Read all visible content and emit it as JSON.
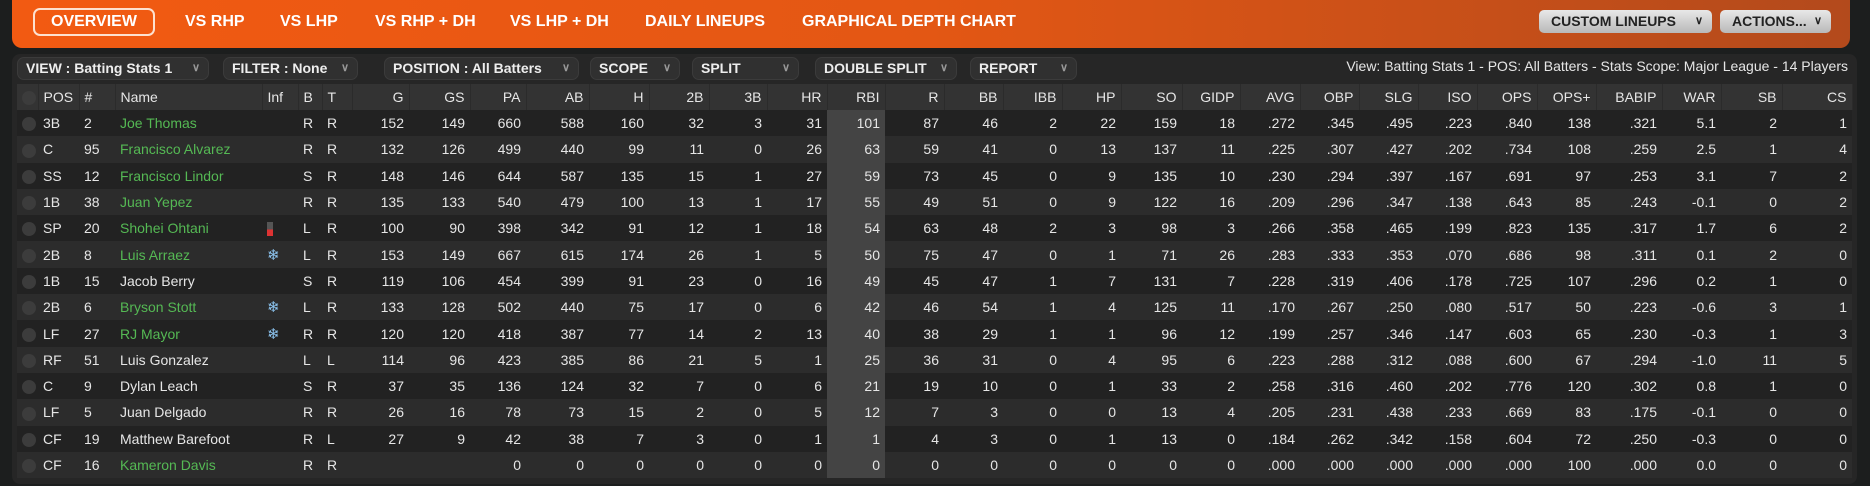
{
  "nav": {
    "tabs": [
      "OVERVIEW",
      "VS RHP",
      "VS LHP",
      "VS RHP + DH",
      "VS LHP + DH",
      "DAILY LINEUPS",
      "GRAPHICAL DEPTH CHART"
    ],
    "active": "OVERVIEW",
    "custom_lineups": "CUSTOM LINEUPS",
    "actions": "ACTIONS..."
  },
  "colors": {
    "accent": "#f25a12",
    "highlight_name": "#55b954",
    "rbi_highlight": "#444444"
  },
  "toolbar": {
    "view": "VIEW : Batting Stats 1",
    "filter": "FILTER : None",
    "position": "POSITION : All Batters",
    "scope": "SCOPE",
    "split": "SPLIT",
    "double_split": "DOUBLE SPLIT",
    "report": "REPORT",
    "info": "View: Batting Stats 1 - POS: All Batters - Stats Scope: Major League - 14 Players"
  },
  "table": {
    "columns": [
      "POS",
      "#",
      "Name",
      "Inf",
      "B",
      "T",
      "G",
      "GS",
      "PA",
      "AB",
      "H",
      "2B",
      "3B",
      "HR",
      "RBI",
      "R",
      "BB",
      "IBB",
      "HP",
      "SO",
      "GIDP",
      "AVG",
      "OBP",
      "SLG",
      "ISO",
      "OPS",
      "OPS+",
      "BABIP",
      "WAR",
      "SB",
      "CS"
    ],
    "sorted_column": "RBI",
    "rows": [
      {
        "pos": "3B",
        "num": "2",
        "name": "Joe Thomas",
        "green": true,
        "inf": "",
        "b": "R",
        "t": "R",
        "stats": [
          "152",
          "149",
          "660",
          "588",
          "160",
          "32",
          "3",
          "31",
          "101",
          "87",
          "46",
          "2",
          "22",
          "159",
          "18",
          ".272",
          ".345",
          ".495",
          ".223",
          ".840",
          "138",
          ".321",
          "5.1",
          "2",
          "1"
        ]
      },
      {
        "pos": "C",
        "num": "95",
        "name": "Francisco Alvarez",
        "green": true,
        "inf": "",
        "b": "R",
        "t": "R",
        "stats": [
          "132",
          "126",
          "499",
          "440",
          "99",
          "11",
          "0",
          "26",
          "63",
          "59",
          "41",
          "0",
          "13",
          "137",
          "11",
          ".225",
          ".307",
          ".427",
          ".202",
          ".734",
          "108",
          ".259",
          "2.5",
          "1",
          "4"
        ]
      },
      {
        "pos": "SS",
        "num": "12",
        "name": "Francisco Lindor",
        "green": true,
        "inf": "",
        "b": "S",
        "t": "R",
        "stats": [
          "148",
          "146",
          "644",
          "587",
          "135",
          "15",
          "1",
          "27",
          "59",
          "73",
          "45",
          "0",
          "9",
          "135",
          "10",
          ".230",
          ".294",
          ".397",
          ".167",
          ".691",
          "97",
          ".253",
          "3.1",
          "7",
          "2"
        ]
      },
      {
        "pos": "1B",
        "num": "38",
        "name": "Juan Yepez",
        "green": true,
        "inf": "",
        "b": "R",
        "t": "R",
        "stats": [
          "135",
          "133",
          "540",
          "479",
          "100",
          "13",
          "1",
          "17",
          "55",
          "49",
          "51",
          "0",
          "9",
          "122",
          "16",
          ".209",
          ".296",
          ".347",
          ".138",
          ".643",
          "85",
          ".243",
          "-0.1",
          "0",
          "2"
        ]
      },
      {
        "pos": "SP",
        "num": "20",
        "name": "Shohei Ohtani",
        "green": true,
        "inf": "injury-bar-icon",
        "b": "L",
        "t": "R",
        "stats": [
          "100",
          "90",
          "398",
          "342",
          "91",
          "12",
          "1",
          "18",
          "54",
          "63",
          "48",
          "2",
          "3",
          "98",
          "3",
          ".266",
          ".358",
          ".465",
          ".199",
          ".823",
          "135",
          ".317",
          "1.7",
          "6",
          "2"
        ]
      },
      {
        "pos": "2B",
        "num": "8",
        "name": "Luis Arraez",
        "green": true,
        "inf": "snowflake-icon",
        "b": "L",
        "t": "R",
        "stats": [
          "153",
          "149",
          "667",
          "615",
          "174",
          "26",
          "1",
          "5",
          "50",
          "75",
          "47",
          "0",
          "1",
          "71",
          "26",
          ".283",
          ".333",
          ".353",
          ".070",
          ".686",
          "98",
          ".311",
          "0.1",
          "2",
          "0"
        ]
      },
      {
        "pos": "1B",
        "num": "15",
        "name": "Jacob Berry",
        "green": false,
        "inf": "",
        "b": "S",
        "t": "R",
        "stats": [
          "119",
          "106",
          "454",
          "399",
          "91",
          "23",
          "0",
          "16",
          "49",
          "45",
          "47",
          "1",
          "7",
          "131",
          "7",
          ".228",
          ".319",
          ".406",
          ".178",
          ".725",
          "107",
          ".296",
          "0.2",
          "1",
          "0"
        ]
      },
      {
        "pos": "2B",
        "num": "6",
        "name": "Bryson Stott",
        "green": true,
        "inf": "snowflake-icon",
        "b": "L",
        "t": "R",
        "stats": [
          "133",
          "128",
          "502",
          "440",
          "75",
          "17",
          "0",
          "6",
          "42",
          "46",
          "54",
          "1",
          "4",
          "125",
          "11",
          ".170",
          ".267",
          ".250",
          ".080",
          ".517",
          "50",
          ".223",
          "-0.6",
          "3",
          "1"
        ]
      },
      {
        "pos": "LF",
        "num": "27",
        "name": "RJ Mayor",
        "green": true,
        "inf": "snowflake-icon",
        "b": "R",
        "t": "R",
        "stats": [
          "120",
          "120",
          "418",
          "387",
          "77",
          "14",
          "2",
          "13",
          "40",
          "38",
          "29",
          "1",
          "1",
          "96",
          "12",
          ".199",
          ".257",
          ".346",
          ".147",
          ".603",
          "65",
          ".230",
          "-0.3",
          "1",
          "3"
        ]
      },
      {
        "pos": "RF",
        "num": "51",
        "name": "Luis Gonzalez",
        "green": false,
        "inf": "",
        "b": "L",
        "t": "L",
        "stats": [
          "114",
          "96",
          "423",
          "385",
          "86",
          "21",
          "5",
          "1",
          "25",
          "36",
          "31",
          "0",
          "4",
          "95",
          "6",
          ".223",
          ".288",
          ".312",
          ".088",
          ".600",
          "67",
          ".294",
          "-1.0",
          "11",
          "5"
        ]
      },
      {
        "pos": "C",
        "num": "9",
        "name": "Dylan Leach",
        "green": false,
        "inf": "",
        "b": "S",
        "t": "R",
        "stats": [
          "37",
          "35",
          "136",
          "124",
          "32",
          "7",
          "0",
          "6",
          "21",
          "19",
          "10",
          "0",
          "1",
          "33",
          "2",
          ".258",
          ".316",
          ".460",
          ".202",
          ".776",
          "120",
          ".302",
          "0.8",
          "1",
          "0"
        ]
      },
      {
        "pos": "LF",
        "num": "5",
        "name": "Juan Delgado",
        "green": false,
        "inf": "",
        "b": "R",
        "t": "R",
        "stats": [
          "26",
          "16",
          "78",
          "73",
          "15",
          "2",
          "0",
          "5",
          "12",
          "7",
          "3",
          "0",
          "0",
          "13",
          "4",
          ".205",
          ".231",
          ".438",
          ".233",
          ".669",
          "83",
          ".175",
          "-0.1",
          "0",
          "0"
        ]
      },
      {
        "pos": "CF",
        "num": "19",
        "name": "Matthew Barefoot",
        "green": false,
        "inf": "",
        "b": "R",
        "t": "L",
        "stats": [
          "27",
          "9",
          "42",
          "38",
          "7",
          "3",
          "0",
          "1",
          "1",
          "4",
          "3",
          "0",
          "1",
          "13",
          "0",
          ".184",
          ".262",
          ".342",
          ".158",
          ".604",
          "72",
          ".250",
          "-0.3",
          "0",
          "0"
        ]
      },
      {
        "pos": "CF",
        "num": "16",
        "name": "Kameron Davis",
        "green": true,
        "inf": "",
        "b": "R",
        "t": "R",
        "stats": [
          "",
          "",
          "0",
          "0",
          "0",
          "0",
          "0",
          "0",
          "0",
          "0",
          "0",
          "0",
          "0",
          "0",
          "0",
          ".000",
          ".000",
          ".000",
          ".000",
          ".000",
          "100",
          ".000",
          "0.0",
          "0",
          "0"
        ]
      }
    ]
  }
}
